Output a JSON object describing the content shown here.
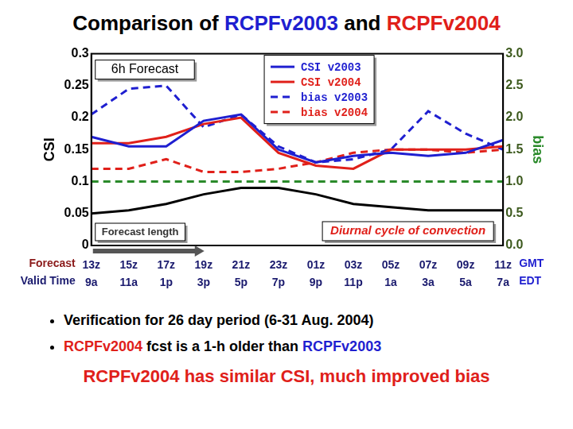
{
  "title": [
    {
      "text": "Comparison of ",
      "color": "#000000"
    },
    {
      "text": "RCPFv2003",
      "color": "#1f1fd0"
    },
    {
      "text": " and ",
      "color": "#000000"
    },
    {
      "text": "RCPFv2004",
      "color": "#e0201a"
    }
  ],
  "chart_data": {
    "type": "line",
    "categories": [
      "13z",
      "15z",
      "17z",
      "19z",
      "21z",
      "23z",
      "01z",
      "03z",
      "05z",
      "07z",
      "09z",
      "11z"
    ],
    "categories_local": [
      "9a",
      "11a",
      "1p",
      "3p",
      "5p",
      "7p",
      "9p",
      "11p",
      "1a",
      "3a",
      "5a",
      "7a"
    ],
    "x_row_labels": [
      "Forecast",
      "Valid Time"
    ],
    "x_row_units": [
      "GMT",
      "EDT"
    ],
    "ylabel": "CSI",
    "y2label": "bias",
    "ylim": [
      0,
      0.3
    ],
    "yticks": [
      0,
      0.05,
      0.1,
      0.15,
      0.2,
      0.25,
      0.3
    ],
    "y2lim": [
      0,
      3
    ],
    "y2ticks": [
      {
        "value": 0,
        "label": "0.0"
      },
      {
        "value": 0.5,
        "label": "0.5"
      },
      {
        "value": 1,
        "label": "1.0"
      },
      {
        "value": 1.5,
        "label": "1.5"
      },
      {
        "value": 2,
        "label": "2.0"
      },
      {
        "value": 2.5,
        "label": "2.5"
      },
      {
        "value": 3,
        "label": "3.0"
      }
    ],
    "grid": false,
    "legend": "upper center",
    "annotations": [
      "6h Forecast",
      "Forecast length",
      "Diurnal cycle of convection"
    ],
    "series": [
      {
        "name": "CSI v2003",
        "color": "#1f1fd0",
        "line_style": "solid",
        "marker": "none",
        "axis": "y",
        "values": [
          0.17,
          0.155,
          0.155,
          0.195,
          0.205,
          0.15,
          0.13,
          0.14,
          0.145,
          0.14,
          0.145,
          0.165
        ]
      },
      {
        "name": "CSI v2004",
        "color": "#e0201a",
        "line_style": "solid",
        "marker": "none",
        "axis": "y",
        "values": [
          0.16,
          0.16,
          0.17,
          0.19,
          0.2,
          0.145,
          0.125,
          0.12,
          0.15,
          0.15,
          0.15,
          0.155
        ]
      },
      {
        "name": "bias v2003",
        "color": "#1f1fd0",
        "line_style": "dashed",
        "marker": "none",
        "axis": "y2",
        "values": [
          2.05,
          2.45,
          2.5,
          1.85,
          2.05,
          1.55,
          1.3,
          1.35,
          1.5,
          2.1,
          1.75,
          1.5
        ]
      },
      {
        "name": "bias v2004",
        "color": "#e0201a",
        "line_style": "dashed",
        "marker": "none",
        "axis": "y2",
        "values": [
          1.2,
          1.2,
          1.35,
          1.15,
          1.15,
          1.2,
          1.3,
          1.45,
          1.5,
          1.5,
          1.45,
          1.5
        ]
      },
      {
        "color": "#000000",
        "line_style": "solid",
        "marker": "none",
        "axis": "y",
        "values": [
          0.05,
          0.055,
          0.065,
          0.08,
          0.09,
          0.09,
          0.08,
          0.065,
          0.06,
          0.055,
          0.055,
          0.055
        ]
      },
      {
        "color": "#2a8a2a",
        "line_style": "dashed",
        "marker": "none",
        "axis": "y2",
        "values": [
          1,
          1,
          1,
          1,
          1,
          1,
          1,
          1,
          1,
          1,
          1,
          1
        ]
      }
    ]
  },
  "bullets": [
    [
      {
        "text": "Verification for 26 day period (6-31 Aug. 2004)",
        "color": "#000000"
      }
    ],
    [
      {
        "text": "RCPFv2004",
        "color": "#e0201a"
      },
      {
        "text": " fcst is a 1-h older than ",
        "color": "#000000"
      },
      {
        "text": "RCPFv2003",
        "color": "#1f1fd0"
      }
    ]
  ],
  "conclusion": [
    {
      "text": "RCPFv2004 has similar CSI, much improved bias",
      "color": "#e0201a"
    }
  ]
}
